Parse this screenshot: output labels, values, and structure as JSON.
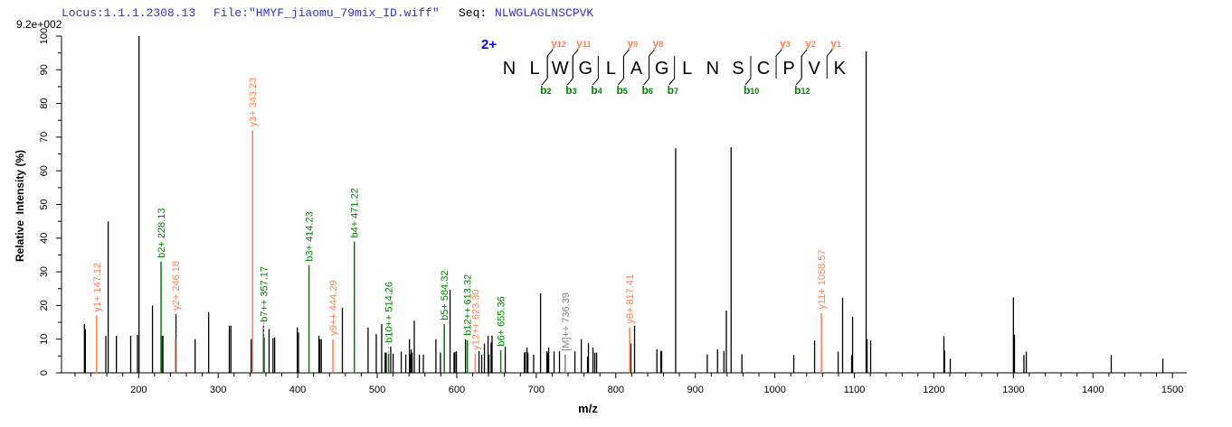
{
  "header": {
    "locus": "Locus:1.1.1.2308.13",
    "file": "File:\"HMYF_jiaomu_79mix_ID.wiff\"",
    "seq_label": "Seq:",
    "seq_value": "NLWGLAGLNSCPVK",
    "max_intensity": "9.2e+002"
  },
  "colors": {
    "header_blue": "#3333cc",
    "y_ion": "#ff7f50",
    "b_ion": "#008000",
    "other_ion": "#808080",
    "peak": "#000000",
    "charge": "#0000ff"
  },
  "sequence_panel": {
    "charge": "2+",
    "residues": [
      "N",
      "L",
      "W",
      "G",
      "L",
      "A",
      "G",
      "L",
      "N",
      "S",
      "C",
      "P",
      "V",
      "K"
    ],
    "y_ions": [
      {
        "label": "y",
        "sub": "12",
        "after": 2
      },
      {
        "label": "y",
        "sub": "11",
        "after": 3
      },
      {
        "label": "y",
        "sub": "9",
        "after": 5
      },
      {
        "label": "y",
        "sub": "8",
        "after": 6
      },
      {
        "label": "y",
        "sub": "3",
        "after": 11
      },
      {
        "label": "y",
        "sub": "2",
        "after": 12
      },
      {
        "label": "y",
        "sub": "1",
        "after": 13
      }
    ],
    "b_ions": [
      {
        "label": "b",
        "sub": "2",
        "after": 2
      },
      {
        "label": "b",
        "sub": "3",
        "after": 3
      },
      {
        "label": "b",
        "sub": "4",
        "after": 4
      },
      {
        "label": "b",
        "sub": "5",
        "after": 5
      },
      {
        "label": "b",
        "sub": "6",
        "after": 6
      },
      {
        "label": "b",
        "sub": "7",
        "after": 7
      },
      {
        "label": "b",
        "sub": "10",
        "after": 10
      },
      {
        "label": "b",
        "sub": "12",
        "after": 12
      }
    ]
  },
  "chart_data": {
    "type": "bar",
    "xlabel": "m/z",
    "ylabel": "Relative  Intensity (%)",
    "xlim": [
      103,
      1518
    ],
    "ylim": [
      0,
      100
    ],
    "xticks": [
      200,
      300,
      400,
      500,
      600,
      700,
      800,
      900,
      1000,
      1100,
      1200,
      1300,
      1400,
      1500
    ],
    "yticks": [
      0,
      10,
      20,
      30,
      40,
      50,
      60,
      70,
      80,
      90,
      100
    ],
    "grid": false,
    "peaks": [
      [
        131.8,
        14.5
      ],
      [
        133,
        13
      ],
      [
        158.7,
        11
      ],
      [
        161.7,
        45
      ],
      [
        172,
        11
      ],
      [
        190,
        11
      ],
      [
        198.5,
        11.3
      ],
      [
        200.5,
        100
      ],
      [
        217.4,
        20
      ],
      [
        229,
        11
      ],
      [
        230.5,
        11
      ],
      [
        247,
        17.5
      ],
      [
        271,
        10
      ],
      [
        288,
        18
      ],
      [
        314,
        14
      ],
      [
        316,
        14
      ],
      [
        341.5,
        10
      ],
      [
        357,
        14
      ],
      [
        357.8,
        10.5
      ],
      [
        364,
        13
      ],
      [
        369,
        10.3
      ],
      [
        371,
        10.5
      ],
      [
        399.5,
        13.5
      ],
      [
        401,
        12
      ],
      [
        426.7,
        11
      ],
      [
        427.8,
        10
      ],
      [
        429.7,
        10
      ],
      [
        456.2,
        19.3
      ],
      [
        488.5,
        13.4
      ],
      [
        498.8,
        11.5
      ],
      [
        505.6,
        14.5
      ],
      [
        510,
        6
      ],
      [
        511.3,
        6
      ],
      [
        517,
        7.8
      ],
      [
        520,
        5.7
      ],
      [
        530.2,
        6.3
      ],
      [
        535.9,
        5.4
      ],
      [
        540.5,
        10
      ],
      [
        541.6,
        5.5
      ],
      [
        542.7,
        7
      ],
      [
        543.9,
        6
      ],
      [
        546.6,
        15.5
      ],
      [
        553,
        5.4
      ],
      [
        558,
        5.4
      ],
      [
        573.8,
        10
      ],
      [
        579.5,
        6
      ],
      [
        591.6,
        24.7
      ],
      [
        596.6,
        6
      ],
      [
        597.7,
        6.2
      ],
      [
        599.6,
        6.4
      ],
      [
        611,
        10
      ],
      [
        628,
        6.4
      ],
      [
        631.4,
        5.4
      ],
      [
        634.8,
        8.7
      ],
      [
        639.4,
        11
      ],
      [
        640.5,
        5.4
      ],
      [
        643.2,
        9
      ],
      [
        644.4,
        11
      ],
      [
        661,
        7.8
      ],
      [
        685,
        6
      ],
      [
        686,
        6.2
      ],
      [
        688.3,
        7.5
      ],
      [
        689.5,
        6
      ],
      [
        696.7,
        5.4
      ],
      [
        705.4,
        23.6
      ],
      [
        713.3,
        6.4
      ],
      [
        714.5,
        6
      ],
      [
        715.6,
        7.5
      ],
      [
        722.4,
        6.4
      ],
      [
        729.2,
        6.4
      ],
      [
        748.6,
        6.4
      ],
      [
        756.6,
        10
      ],
      [
        764.5,
        4.8
      ],
      [
        765.6,
        8.8
      ],
      [
        771.3,
        7.5
      ],
      [
        773.6,
        6
      ],
      [
        775.9,
        6
      ],
      [
        819,
        8.7
      ],
      [
        823.6,
        14
      ],
      [
        851.7,
        7
      ],
      [
        856.6,
        6.5
      ],
      [
        857.7,
        6.5
      ],
      [
        875.3,
        66.7
      ],
      [
        915,
        5.5
      ],
      [
        928,
        7
      ],
      [
        936,
        6.5
      ],
      [
        939,
        18.5
      ],
      [
        945,
        67
      ],
      [
        958.6,
        5.5
      ],
      [
        1023.8,
        5.3
      ],
      [
        1050,
        9.6
      ],
      [
        1079.6,
        6.3
      ],
      [
        1085.2,
        22.3
      ],
      [
        1096.6,
        5.3
      ],
      [
        1097.8,
        16.6
      ],
      [
        1114.8,
        95.5
      ],
      [
        1116,
        10
      ],
      [
        1120.5,
        9.6
      ],
      [
        1212.6,
        10.9
      ],
      [
        1213.4,
        6.6
      ],
      [
        1220.6,
        4.2
      ],
      [
        1300,
        22.4
      ],
      [
        1301.3,
        11.3
      ],
      [
        1313.2,
        5.3
      ],
      [
        1316.2,
        6.3
      ],
      [
        1423,
        5.3
      ],
      [
        1487.9,
        4.2
      ]
    ],
    "annotated_peaks": [
      {
        "label": "y1+ 147.12",
        "mz": 147.12,
        "intensity": 17,
        "type": "y"
      },
      {
        "label": "b2+ 228.13",
        "mz": 228.13,
        "intensity": 33,
        "type": "b"
      },
      {
        "label": "y2+ 246.18",
        "mz": 246.18,
        "intensity": 10,
        "type": "y"
      },
      {
        "label": "y3+ 343.23",
        "mz": 343.23,
        "intensity": 72,
        "type": "y"
      },
      {
        "label": "b7++ 357.17",
        "mz": 357.17,
        "intensity": 11.5,
        "type": "b"
      },
      {
        "label": "b3+ 414.23",
        "mz": 414.23,
        "intensity": 32,
        "type": "b"
      },
      {
        "label": "y9++ 444.29",
        "mz": 444.29,
        "intensity": 10,
        "type": "y"
      },
      {
        "label": "b4+ 471.22",
        "mz": 471.22,
        "intensity": 39,
        "type": "b"
      },
      {
        "label": "b10++ 514.26",
        "mz": 514.26,
        "intensity": 5.7,
        "type": "b"
      },
      {
        "label": "b5+ 584.32",
        "mz": 584.32,
        "intensity": 14.5,
        "type": "b"
      },
      {
        "label": "b12++ 613.32",
        "mz": 613.32,
        "intensity": 9.7,
        "type": "b"
      },
      {
        "label": "y12++ 623.30",
        "mz": 623.3,
        "intensity": 5.7,
        "type": "y"
      },
      {
        "label": "b6+ 655.36",
        "mz": 655.36,
        "intensity": 6.8,
        "type": "b"
      },
      {
        "label": "[M]++ 736.39",
        "mz": 736.39,
        "intensity": 5.4,
        "type": "other"
      },
      {
        "label": "y8+ 817.41",
        "mz": 817.41,
        "intensity": 13.5,
        "type": "y"
      },
      {
        "label": "y11+ 1058.57",
        "mz": 1058.57,
        "intensity": 17.8,
        "type": "y"
      }
    ]
  }
}
